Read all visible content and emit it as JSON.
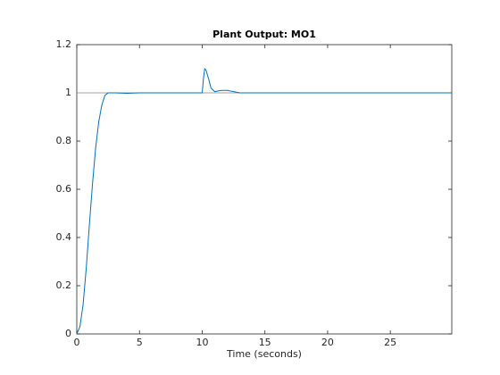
{
  "chart_data": {
    "type": "line",
    "title": "Plant Output:  MO1",
    "x_label": "Time (seconds)",
    "x": [
      0,
      0.25,
      0.5,
      0.75,
      1,
      1.25,
      1.5,
      1.75,
      2,
      2.25,
      2.5,
      3,
      4,
      5,
      10,
      10.1,
      10.2,
      10.3,
      10.5,
      10.7,
      11,
      11.5,
      12,
      12.5,
      13,
      14,
      29.9
    ],
    "series": [
      {
        "color": "#a0a0a0",
        "values": [
          1,
          1,
          1,
          1,
          1,
          1,
          1,
          1,
          1,
          1,
          1,
          1,
          1,
          1,
          1,
          1,
          1,
          1,
          1,
          1,
          1,
          1,
          1,
          1,
          1,
          1,
          1
        ]
      },
      {
        "color": "#0072bd",
        "values": [
          0,
          0.03,
          0.12,
          0.27,
          0.45,
          0.62,
          0.77,
          0.88,
          0.95,
          0.99,
          1,
          1,
          0.998,
          1,
          1,
          1.06,
          1.1,
          1.095,
          1.06,
          1.02,
          1.005,
          1.01,
          1.01,
          1.005,
          1,
          1,
          1
        ]
      }
    ],
    "xlim": [
      0,
      29.9
    ],
    "xticks": [
      0,
      5,
      10,
      15,
      20,
      25
    ],
    "ylim": [
      0,
      1.2
    ],
    "yticks": [
      0,
      0.2,
      0.4,
      0.6,
      0.8,
      1,
      1.2
    ]
  }
}
